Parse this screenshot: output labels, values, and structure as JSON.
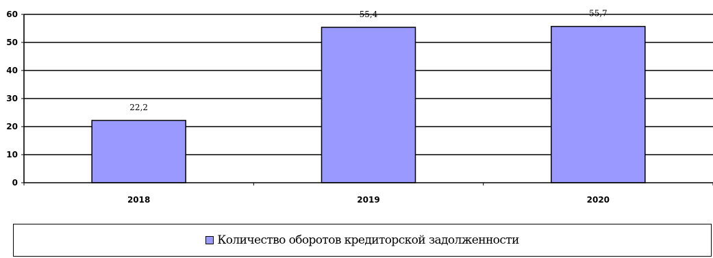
{
  "chart_data": {
    "type": "bar",
    "categories": [
      "2018",
      "2019",
      "2020"
    ],
    "series": [
      {
        "name": "Количество оборотов кредиторской задолженности",
        "values": [
          22.2,
          55.4,
          55.7
        ],
        "data_labels": [
          "22,2",
          "55,4",
          "55,7"
        ],
        "color": "#9999ff"
      }
    ],
    "y_ticks": [
      "0",
      "10",
      "20",
      "30",
      "40",
      "50",
      "60"
    ],
    "ylim": [
      0,
      60
    ],
    "grid": true,
    "legend": "bottom",
    "title": "",
    "xlabel": "",
    "ylabel": ""
  }
}
